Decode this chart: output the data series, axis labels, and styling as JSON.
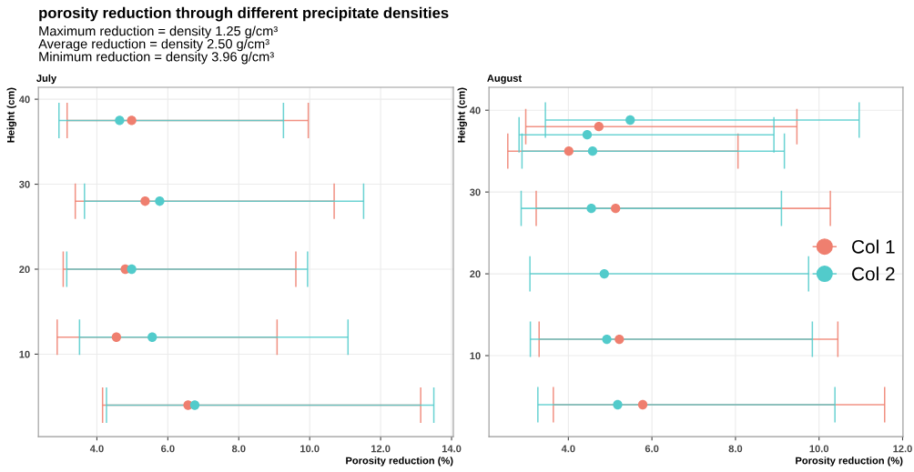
{
  "chart_data": [
    {
      "type": "scatter",
      "title": "porosity reduction through different precipitate densities",
      "subtitle": "Maximum reduction = density 1.25 g/cm³\nAverage reduction = density 2.50 g/cm³\nMinimum reduction = density 3.96 g/cm³",
      "annotations": [
        "July"
      ],
      "xlabel": "Porosity reduction (%)",
      "ylabel": "Height (cm)",
      "xlim": [
        2.35,
        14.05
      ],
      "ylim": [
        0.3,
        41.4
      ],
      "xticks": [
        {
          "value": 4,
          "label": "4.0"
        },
        {
          "value": 6,
          "label": "6.0"
        },
        {
          "value": 8,
          "label": "8.0"
        },
        {
          "value": 10,
          "label": "10.0"
        },
        {
          "value": 12,
          "label": "12.0"
        },
        {
          "value": 14,
          "label": "14.0"
        }
      ],
      "yticks": [
        10,
        20,
        30,
        40
      ],
      "grid": true,
      "marker": "circle",
      "legend": false,
      "series": [
        {
          "color": "#ef7f6f",
          "x": [
            4.98,
            5.36,
            4.8,
            4.55,
            6.57
          ],
          "values": [
            37.5,
            28,
            20,
            12,
            4
          ],
          "xerrors": [
            [
              3.16,
              9.96
            ],
            [
              3.39,
              10.69
            ],
            [
              3.05,
              9.61
            ],
            [
              2.88,
              9.08
            ],
            [
              4.16,
              13.13
            ]
          ]
        },
        {
          "color": "#52cbcb",
          "x": [
            4.64,
            5.77,
            4.98,
            5.56,
            6.76
          ],
          "values": [
            37.5,
            28,
            20,
            12,
            4
          ],
          "xerrors": [
            [
              2.93,
              9.26
            ],
            [
              3.65,
              11.52
            ],
            [
              3.15,
              9.94
            ],
            [
              3.51,
              11.08
            ],
            [
              4.27,
              13.5
            ]
          ]
        }
      ]
    },
    {
      "type": "scatter",
      "annotations": [
        "August"
      ],
      "xlabel": "Porosity reduction (%)",
      "ylabel": "Height (cm)",
      "xlim": [
        2.1,
        12.01
      ],
      "ylim": [
        0.1,
        42.8
      ],
      "xticks": [
        {
          "value": 4,
          "label": "4.0"
        },
        {
          "value": 6,
          "label": "6.0"
        },
        {
          "value": 8,
          "label": "8.0"
        },
        {
          "value": 10,
          "label": "10.0"
        },
        {
          "value": 12,
          "label": "12.0"
        }
      ],
      "yticks": [
        10,
        20,
        30,
        40
      ],
      "grid": true,
      "marker": "circle",
      "legend": "right",
      "series": [
        {
          "name": "Col 1",
          "color": "#ef7f6f",
          "x": [
            4.73,
            4.01,
            5.13,
            5.22,
            5.78
          ],
          "values": [
            38,
            35,
            28,
            12,
            4
          ],
          "xerrors": [
            [
              2.98,
              9.47
            ],
            [
              2.55,
              8.06
            ],
            [
              3.23,
              10.27
            ],
            [
              3.3,
              10.45
            ],
            [
              3.64,
              11.57
            ]
          ]
        },
        {
          "name": "Col 2",
          "color": "#52cbcb",
          "x": [
            5.48,
            4.45,
            4.58,
            4.55,
            4.86,
            4.92,
            5.18
          ],
          "values": [
            38.8,
            37,
            35,
            28,
            20,
            12,
            4
          ],
          "xerrors": [
            [
              3.45,
              10.96
            ],
            [
              2.82,
              8.92
            ],
            [
              2.89,
              9.17
            ],
            [
              2.87,
              9.1
            ],
            [
              3.08,
              9.75
            ],
            [
              3.09,
              9.84
            ],
            [
              3.27,
              10.38
            ]
          ]
        }
      ]
    }
  ]
}
